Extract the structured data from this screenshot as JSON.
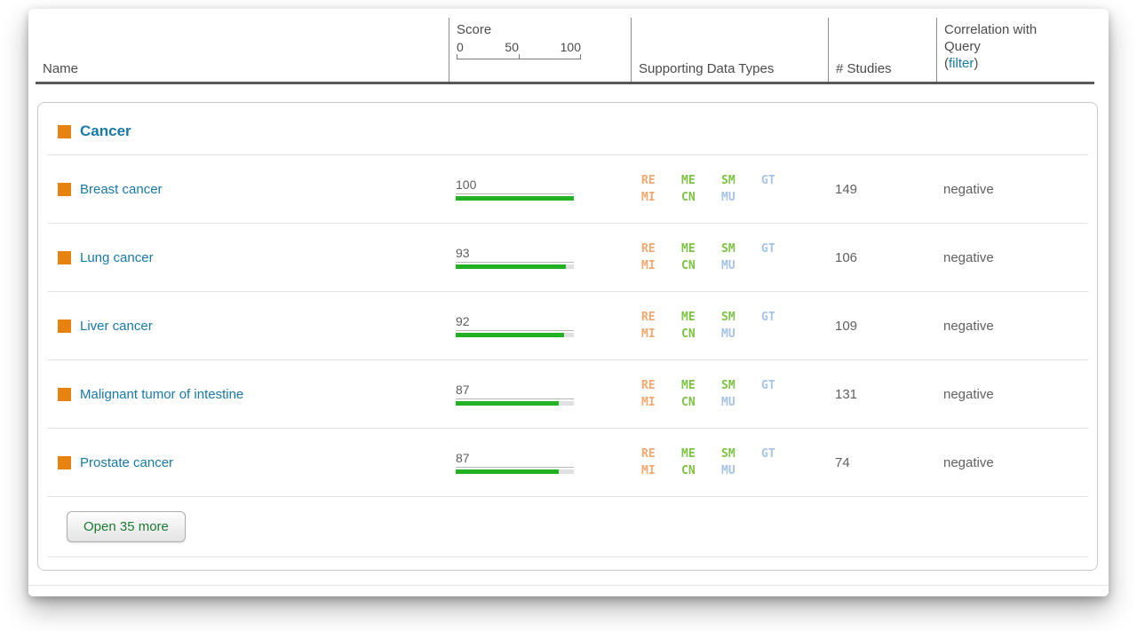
{
  "header": {
    "name_label": "Name",
    "score": {
      "label": "Score",
      "tick0": "0",
      "tick50": "50",
      "tick100": "100"
    },
    "types_label": "Supporting Data Types",
    "studies_label": "# Studies",
    "correlation": {
      "line1": "Correlation with",
      "line2": "Query",
      "open_paren": "(",
      "filter_link": "filter",
      "close_paren": ")"
    }
  },
  "group": {
    "label": "Cancer"
  },
  "badges": {
    "re": "RE",
    "me": "ME",
    "sm": "SM",
    "gt": "GT",
    "mi": "MI",
    "cn": "CN",
    "mu": "MU"
  },
  "rows": [
    {
      "name": "Breast cancer",
      "score": 100,
      "score_label": "100",
      "studies": "149",
      "correlation": "negative"
    },
    {
      "name": "Lung cancer",
      "score": 93,
      "score_label": "93",
      "studies": "106",
      "correlation": "negative"
    },
    {
      "name": "Liver cancer",
      "score": 92,
      "score_label": "92",
      "studies": "109",
      "correlation": "negative"
    },
    {
      "name": "Malignant tumor of intestine",
      "score": 87,
      "score_label": "87",
      "studies": "131",
      "correlation": "negative"
    },
    {
      "name": "Prostate cancer",
      "score": 87,
      "score_label": "87",
      "studies": "74",
      "correlation": "negative"
    }
  ],
  "button": {
    "label": "Open 35 more"
  },
  "colors": {
    "accent_orange": "#E8820E",
    "link_blue": "#1878A6",
    "bar_green": "#22B122",
    "bar_track": "#E0E0E0",
    "datatype_orange": "#F6A76E",
    "datatype_green": "#7CC243",
    "datatype_blue": "#A7C3E4",
    "header_border": "#57585A",
    "body_text": "#606060",
    "button_text": "#1C7A33"
  }
}
